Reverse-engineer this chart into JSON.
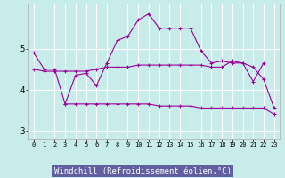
{
  "xlabel": "Windchill (Refroidissement éolien,°C)",
  "background_color": "#c8ecea",
  "grid_color": "#b0dada",
  "line_color": "#990099",
  "xlabel_bg": "#6060a0",
  "xlabel_fg": "#ffffff",
  "xlim": [
    -0.5,
    23.5
  ],
  "ylim": [
    2.8,
    6.1
  ],
  "yticks": [
    3,
    4,
    5
  ],
  "xticks": [
    0,
    1,
    2,
    3,
    4,
    5,
    6,
    7,
    8,
    9,
    10,
    11,
    12,
    13,
    14,
    15,
    16,
    17,
    18,
    19,
    20,
    21,
    22,
    23
  ],
  "line1_x": [
    0,
    1,
    2,
    3,
    4,
    5,
    6,
    7,
    8,
    9,
    10,
    11,
    12,
    13,
    14,
    15,
    16,
    17,
    18,
    19,
    20,
    21,
    22
  ],
  "line1_y": [
    4.9,
    4.5,
    4.5,
    3.65,
    4.35,
    4.4,
    4.1,
    4.65,
    5.2,
    5.3,
    5.7,
    5.85,
    5.5,
    5.5,
    5.5,
    5.5,
    4.95,
    4.65,
    4.7,
    4.65,
    4.65,
    4.2,
    4.65
  ],
  "line2_x": [
    0,
    1,
    2,
    3,
    4,
    5,
    6,
    7,
    8,
    9,
    10,
    11,
    12,
    13,
    14,
    15,
    16,
    17,
    18,
    19,
    20,
    21,
    22,
    23
  ],
  "line2_y": [
    4.5,
    4.45,
    4.45,
    4.45,
    4.45,
    4.45,
    4.5,
    4.55,
    4.55,
    4.55,
    4.6,
    4.6,
    4.6,
    4.6,
    4.6,
    4.6,
    4.6,
    4.55,
    4.55,
    4.7,
    4.65,
    4.55,
    4.25,
    3.55
  ],
  "line3_x": [
    3,
    4,
    5,
    6,
    7,
    8,
    9,
    10,
    11,
    12,
    13,
    14,
    15,
    16,
    17,
    18,
    19,
    20,
    21,
    22,
    23
  ],
  "line3_y": [
    3.65,
    3.65,
    3.65,
    3.65,
    3.65,
    3.65,
    3.65,
    3.65,
    3.65,
    3.6,
    3.6,
    3.6,
    3.6,
    3.55,
    3.55,
    3.55,
    3.55,
    3.55,
    3.55,
    3.55,
    3.4
  ]
}
